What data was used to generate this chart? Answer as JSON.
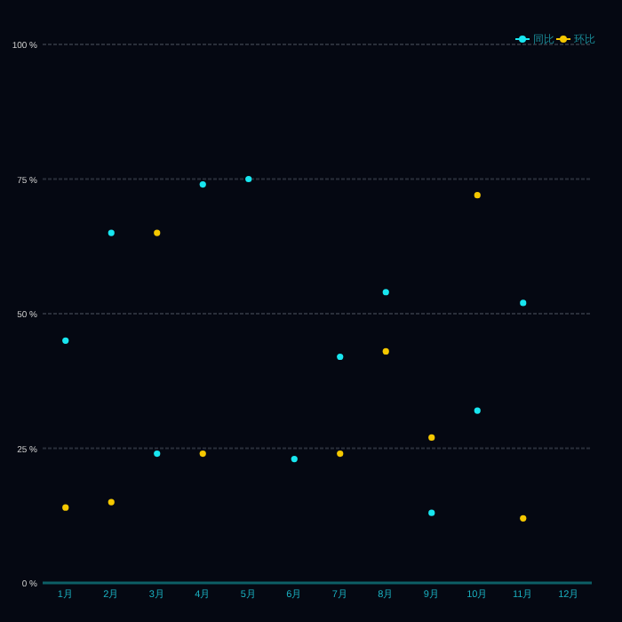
{
  "chart_data": {
    "type": "scatter",
    "categories": [
      "1月",
      "2月",
      "3月",
      "4月",
      "5月",
      "6月",
      "7月",
      "8月",
      "9月",
      "10月",
      "11月",
      "12月"
    ],
    "series": [
      {
        "name": "同比",
        "color": "#18e6f0",
        "values": [
          45,
          65,
          24,
          74,
          75,
          23,
          42,
          54,
          13,
          32,
          52,
          null
        ]
      },
      {
        "name": "环比",
        "color": "#f5c800",
        "values": [
          14,
          15,
          65,
          24,
          null,
          null,
          24,
          43,
          27,
          72,
          12,
          null
        ]
      }
    ],
    "ylim": [
      0,
      100
    ],
    "yticks": [
      {
        "value": 0,
        "label": "0 %"
      },
      {
        "value": 25,
        "label": "25 %"
      },
      {
        "value": 50,
        "label": "50 %"
      },
      {
        "value": 75,
        "label": "75 %"
      },
      {
        "value": 100,
        "label": "100 %"
      }
    ],
    "grid": "y",
    "legend": "top right",
    "marker": "circle"
  }
}
